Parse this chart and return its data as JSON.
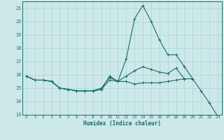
{
  "xlabel": "Humidex (Indice chaleur)",
  "xlim": [
    -0.5,
    23.5
  ],
  "ylim": [
    13,
    21.5
  ],
  "xticks": [
    0,
    1,
    2,
    3,
    4,
    5,
    6,
    7,
    8,
    9,
    10,
    11,
    12,
    13,
    14,
    15,
    16,
    17,
    18,
    19,
    20,
    21,
    22,
    23
  ],
  "yticks": [
    13,
    14,
    15,
    16,
    17,
    18,
    19,
    20,
    21
  ],
  "bg_color": "#cde8e8",
  "line_color": "#1a6b6b",
  "grid_color": "#aad4d4",
  "lines": [
    {
      "x": [
        0,
        1,
        2,
        3,
        4,
        5,
        6,
        7,
        8,
        9,
        10,
        11,
        12,
        13,
        14,
        15,
        16,
        17,
        18,
        19,
        20
      ],
      "y": [
        15.9,
        15.6,
        15.6,
        15.5,
        15.0,
        14.9,
        14.8,
        14.8,
        14.8,
        14.9,
        15.9,
        15.5,
        17.2,
        20.2,
        21.2,
        20.0,
        18.6,
        17.5,
        17.5,
        16.6,
        15.7
      ]
    },
    {
      "x": [
        0,
        1,
        2,
        3,
        4,
        5,
        6,
        7,
        8,
        9,
        10,
        11,
        12,
        13,
        14,
        15,
        16,
        17,
        18,
        19
      ],
      "y": [
        15.9,
        15.6,
        15.6,
        15.5,
        15.0,
        14.9,
        14.8,
        14.8,
        14.8,
        14.9,
        15.6,
        15.5,
        15.9,
        16.3,
        16.6,
        16.4,
        16.2,
        16.1,
        16.5,
        15.7
      ]
    },
    {
      "x": [
        0,
        1,
        2,
        3,
        4,
        5,
        6,
        7,
        8,
        9,
        10,
        11,
        12,
        13,
        14,
        15,
        16,
        17,
        18,
        19,
        20,
        21,
        22,
        23
      ],
      "y": [
        15.9,
        15.6,
        15.6,
        15.5,
        15.0,
        14.9,
        14.8,
        14.8,
        14.8,
        15.0,
        15.8,
        15.5,
        15.5,
        15.3,
        15.4,
        15.4,
        15.4,
        15.5,
        15.6,
        15.7,
        15.7,
        14.8,
        13.9,
        12.9
      ]
    }
  ]
}
